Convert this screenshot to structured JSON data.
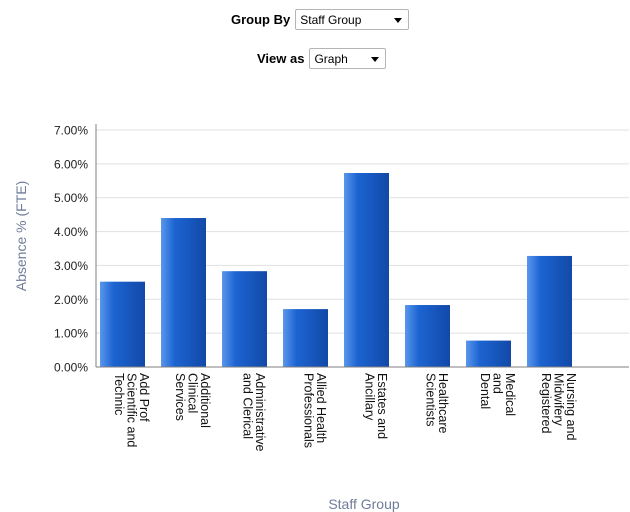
{
  "controls": {
    "group_by_label": "Group By",
    "group_by_value": "Staff Group",
    "view_as_label": "View as",
    "view_as_value": "Graph"
  },
  "chart_data": {
    "type": "bar",
    "title": "",
    "xlabel": "Staff Group",
    "ylabel": "Absence % (FTE)",
    "ylim": [
      0,
      7
    ],
    "yticks": [
      "0.00%",
      "1.00%",
      "2.00%",
      "3.00%",
      "4.00%",
      "5.00%",
      "6.00%",
      "7.00%"
    ],
    "grid": true,
    "categories": [
      [
        "Add Prof",
        "Scientific and",
        "Technic"
      ],
      [
        "Additional",
        "Clinical",
        "Services"
      ],
      [
        "Administrative",
        "and Clerical"
      ],
      [
        "Allied Health",
        "Professionals"
      ],
      [
        "Estates and",
        "Ancillary"
      ],
      [
        "Healthcare",
        "Scientists"
      ],
      [
        "Medical",
        "and",
        "Dental"
      ],
      [
        "Nursing and",
        "Midwifery",
        "Registered"
      ]
    ],
    "values": [
      2.52,
      4.4,
      2.83,
      1.71,
      5.73,
      1.83,
      0.78,
      3.28
    ],
    "colors": {
      "bar": "#1c64d2",
      "bar_light": "#5a97ec",
      "bar_dark": "#1249a8",
      "grid": "#e1e1e1",
      "axis": "#7f7f7f",
      "ylabel": "#6f7c9a",
      "xlabel": "#6f7c9a"
    }
  }
}
